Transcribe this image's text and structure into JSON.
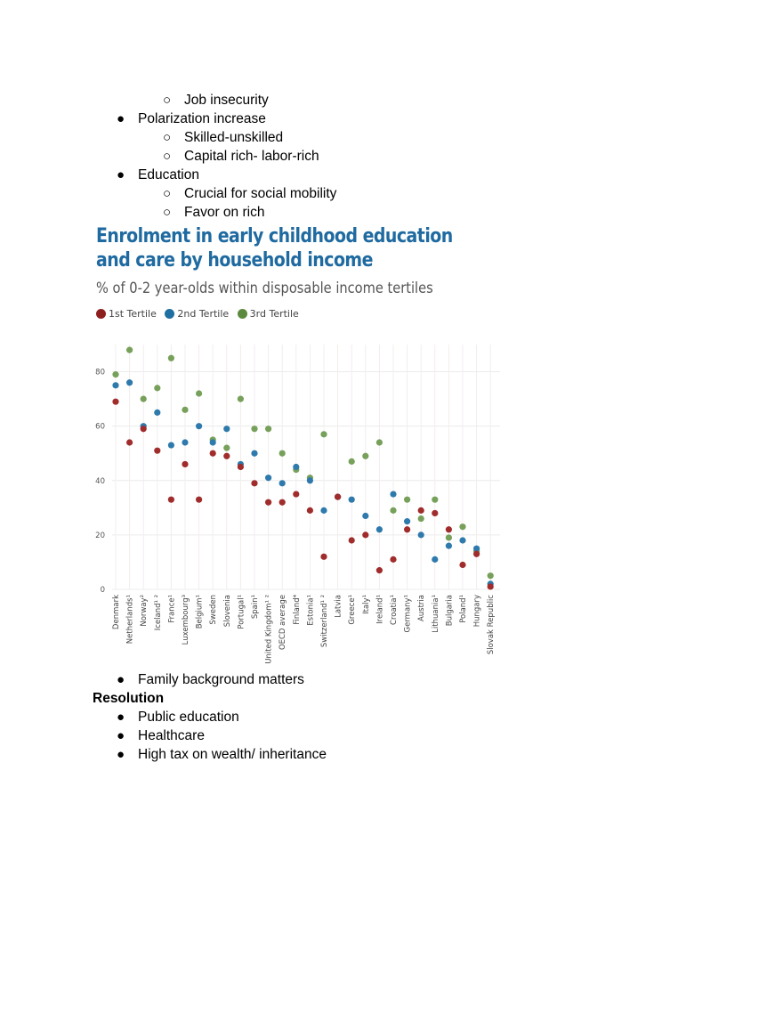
{
  "text_blocks": {
    "top_list": [
      {
        "bullet": "○",
        "text": "Job insecurity"
      },
      {
        "bullet": "●",
        "text": "Polarization increase"
      },
      {
        "bullet": "○",
        "text": "Skilled-unskilled"
      },
      {
        "bullet": "○",
        "text": "Capital rich- labor-rich"
      },
      {
        "bullet": "●",
        "text": "Education"
      },
      {
        "bullet": "○",
        "text": "Crucial for social mobility"
      },
      {
        "bullet": "○",
        "text": "Favor on rich"
      }
    ],
    "after_chart": {
      "bullet": "●",
      "text": "Family background matters"
    },
    "resolution_heading": "Resolution",
    "resolution_list": [
      {
        "bullet": "●",
        "text": "Public education"
      },
      {
        "bullet": "●",
        "text": "Healthcare"
      },
      {
        "bullet": "●",
        "text": "High tax on wealth/ inheritance"
      }
    ]
  },
  "chart_data": {
    "type": "scatter",
    "title": "Enrolment in early childhood education and care by household income",
    "subtitle": "% of 0-2 year-olds within disposable income tertiles",
    "legend": [
      {
        "name": "1st Tertile",
        "color": "#a02c2c"
      },
      {
        "name": "2nd Tertile",
        "color": "#1f6fa3"
      },
      {
        "name": "3rd Tertile",
        "color": "#6e9a4e"
      }
    ],
    "ylim": [
      0,
      90
    ],
    "yticks": [
      0,
      20,
      40,
      60,
      80
    ],
    "categories": [
      "Denmark",
      "Netherlands¹",
      "Norway²",
      "Iceland¹ ²",
      "France¹",
      "Luxembourg³",
      "Belgium¹",
      "Sweden",
      "Slovenia",
      "Portugal¹",
      "Spain¹",
      "United Kingdom¹ ²",
      "OECD average",
      "Finland⁴",
      "Estonia¹",
      "Switzerland¹ ²",
      "Latvia",
      "Greece¹",
      "Italy¹",
      "Ireland¹",
      "Croatia¹",
      "Germany¹",
      "Austria",
      "Lithuania¹",
      "Bulgaria",
      "Poland¹",
      "Hungary",
      "Slovak Republic"
    ],
    "series": [
      {
        "name": "1st Tertile",
        "values": [
          69,
          54,
          59,
          51,
          33,
          46,
          33,
          50,
          49,
          45,
          39,
          32,
          32,
          35,
          29,
          12,
          34,
          18,
          20,
          7,
          11,
          22,
          29,
          28,
          22,
          9,
          13,
          1
        ]
      },
      {
        "name": "2nd Tertile",
        "values": [
          75,
          76,
          60,
          65,
          53,
          54,
          60,
          54,
          59,
          46,
          50,
          41,
          39,
          45,
          40,
          29,
          34,
          33,
          27,
          22,
          35,
          25,
          20,
          11,
          16,
          18,
          15,
          2
        ]
      },
      {
        "name": "3rd Tertile",
        "values": [
          79,
          88,
          70,
          74,
          85,
          66,
          72,
          55,
          52,
          70,
          59,
          59,
          50,
          44,
          41,
          57,
          34,
          47,
          49,
          54,
          29,
          33,
          26,
          33,
          19,
          23,
          14,
          5
        ]
      }
    ]
  }
}
